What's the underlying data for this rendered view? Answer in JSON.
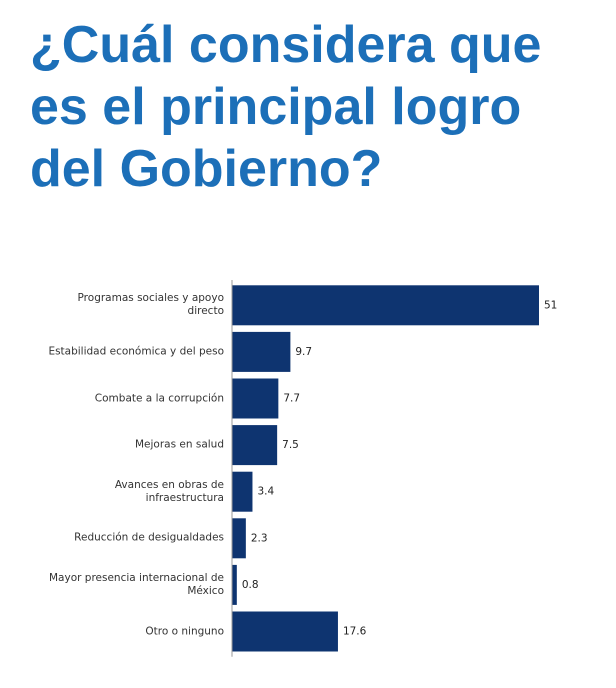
{
  "chart_data": {
    "type": "bar",
    "orientation": "horizontal",
    "title": "¿Cuál considera que es el principal logro del Gobierno?",
    "categories": [
      "Programas sociales y apoyo directo",
      "Estabilidad económica y del peso",
      "Combate a la corrupción",
      "Mejoras en salud",
      "Avances en obras de infraestructura",
      "Reducción de desigualdades",
      "Mayor presencia internacional de México",
      "Otro o ninguno"
    ],
    "values": [
      51,
      9.7,
      7.7,
      7.5,
      3.4,
      2.3,
      0.8,
      17.6
    ],
    "color": "#0e3470"
  }
}
